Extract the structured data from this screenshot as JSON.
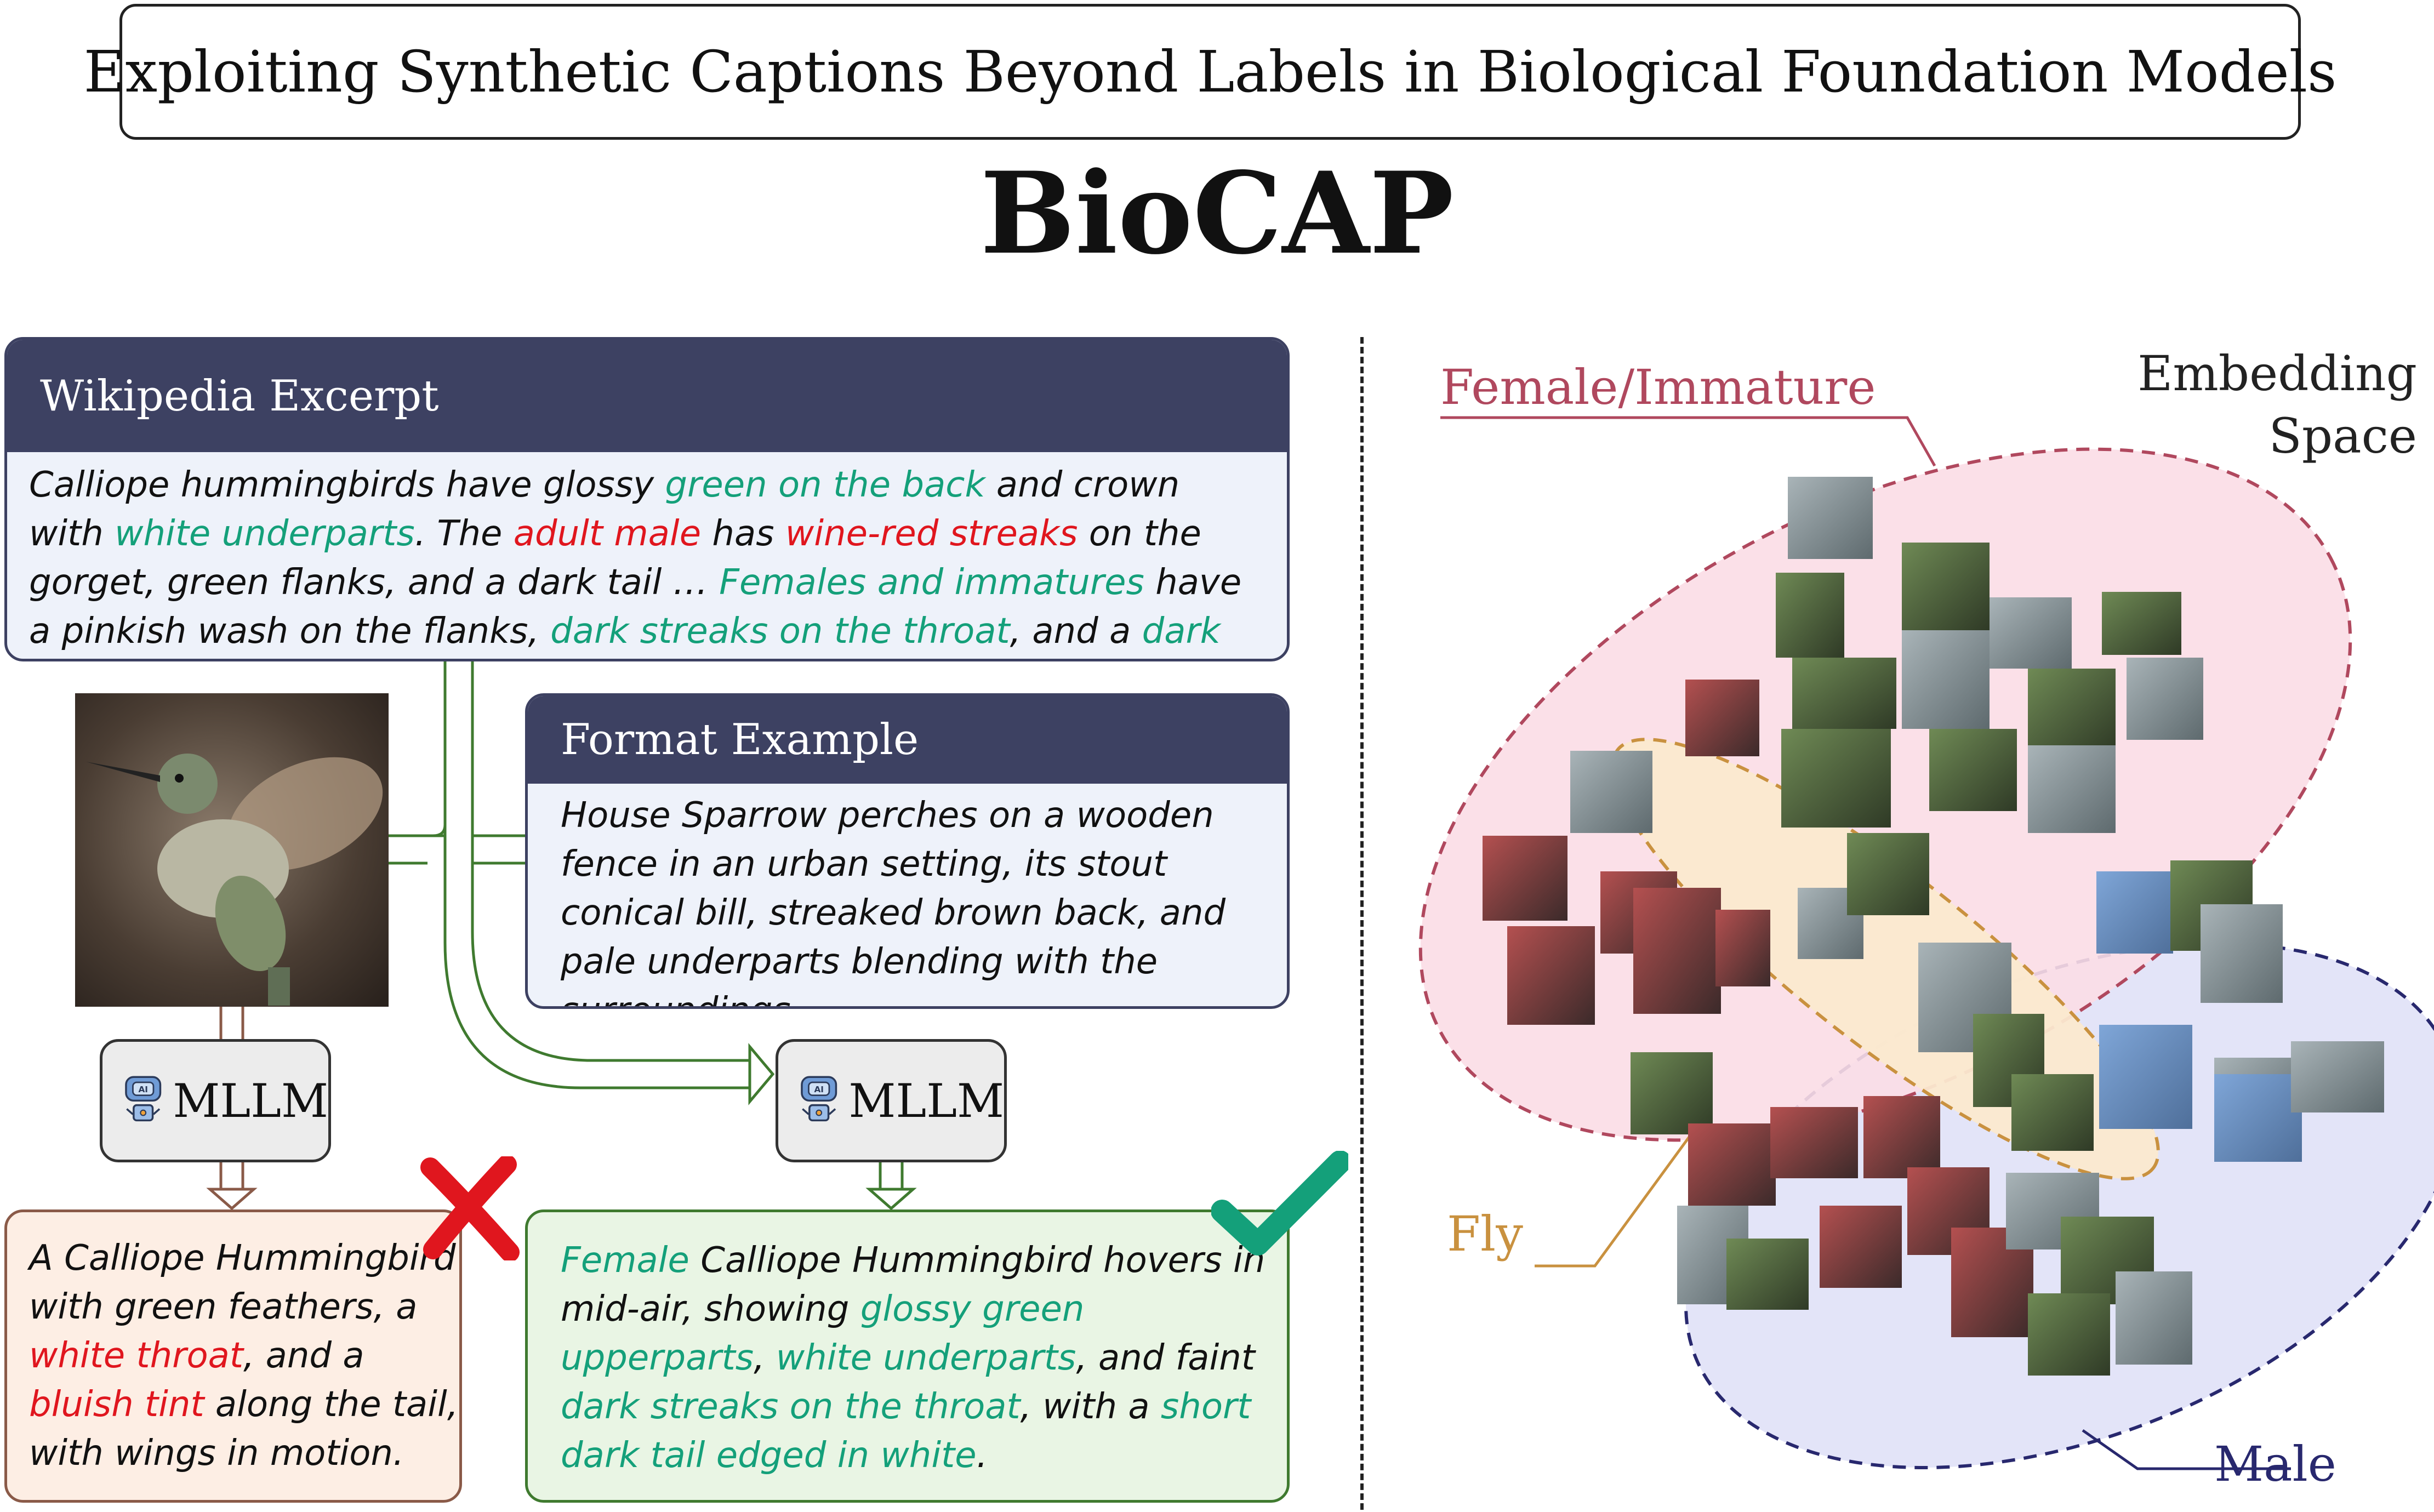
{
  "header": {
    "subtitle": "Exploiting Synthetic Captions Beyond Labels in Biological Foundation Models",
    "title": "BioCAP"
  },
  "wikipedia_card": {
    "heading": "Wikipedia Excerpt",
    "text": [
      {
        "t": "Calliope hummingbirds have glossy ",
        "c": "plain"
      },
      {
        "t": "green on the back",
        "c": "green"
      },
      {
        "t": " and crown with ",
        "c": "plain"
      },
      {
        "t": "white underparts",
        "c": "green"
      },
      {
        "t": ". The ",
        "c": "plain"
      },
      {
        "t": "adult male",
        "c": "red"
      },
      {
        "t": " has ",
        "c": "plain"
      },
      {
        "t": "wine-red streaks",
        "c": "red"
      },
      {
        "t": " on the gorget, green flanks, and a dark tail … ",
        "c": "plain"
      },
      {
        "t": "Females and immatures",
        "c": "green"
      },
      {
        "t": " have a pinkish wash on the flanks, ",
        "c": "plain"
      },
      {
        "t": "dark streaks on the throat",
        "c": "green"
      },
      {
        "t": ", and a ",
        "c": "plain"
      },
      {
        "t": "dark tail with white tips",
        "c": "green"
      },
      {
        "t": " …",
        "c": "plain"
      }
    ]
  },
  "format_card": {
    "heading": "Format Example",
    "text": "House Sparrow perches on a wooden fence in an urban setting, its stout conical bill, streaked brown back, and pale underparts blending with the surroundings …"
  },
  "mllm_left": {
    "label": "MLLM",
    "badge": "AI",
    "icon": "robot-icon"
  },
  "mllm_right": {
    "label": "MLLM",
    "badge": "AI",
    "icon": "robot-icon"
  },
  "bad_caption": {
    "mark": "cross-mark",
    "text": [
      {
        "t": "A Calliope Hummingbird with green feathers, a ",
        "c": "plain"
      },
      {
        "t": "white throat",
        "c": "red"
      },
      {
        "t": ", and a ",
        "c": "plain"
      },
      {
        "t": "bluish tint",
        "c": "red"
      },
      {
        "t": " along the tail, with wings in motion.",
        "c": "plain"
      }
    ]
  },
  "good_caption": {
    "mark": "check-mark",
    "text": [
      {
        "t": "Female",
        "c": "green"
      },
      {
        "t": " Calliope Hummingbird hovers in mid-air, showing ",
        "c": "plain"
      },
      {
        "t": "glossy green upperparts",
        "c": "green"
      },
      {
        "t": ", ",
        "c": "plain"
      },
      {
        "t": "white underparts",
        "c": "green"
      },
      {
        "t": ", and faint ",
        "c": "plain"
      },
      {
        "t": "dark streaks on the throat",
        "c": "green"
      },
      {
        "t": ", with a ",
        "c": "plain"
      },
      {
        "t": "short dark tail edged in white",
        "c": "green"
      },
      {
        "t": ".",
        "c": "plain"
      }
    ]
  },
  "embedding": {
    "title": "Embedding Space",
    "clusters": [
      {
        "label": "Female/Immature",
        "color": "#b0485e",
        "fill": "#fbdde6"
      },
      {
        "label": "Fly",
        "color": "#c9913f",
        "fill": "#fbe9cf"
      },
      {
        "label": "Male",
        "color": "#28286e",
        "fill": "#e3e4f8"
      }
    ]
  },
  "colors": {
    "card_header": "#3d4162",
    "highlight_green": "#14a07a",
    "highlight_red": "#e0161e",
    "flow_green": "#3f7a2f",
    "flow_brown": "#8a5a48"
  }
}
